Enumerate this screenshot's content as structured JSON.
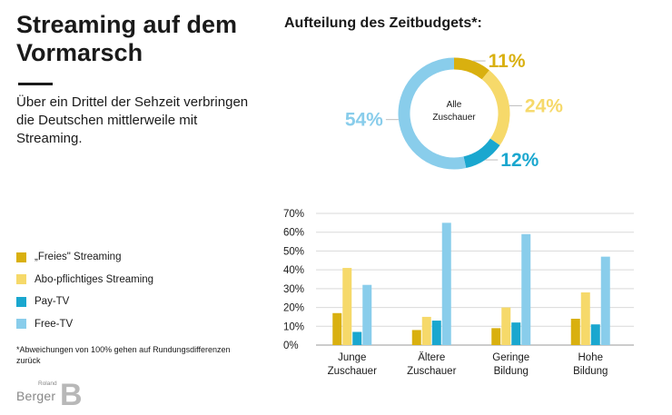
{
  "title": "Streaming auf dem Vormarsch",
  "subtitle": "Über ein Drittel der Sehzeit verbringen die Deutschen mittlerweile mit Streaming.",
  "legend": [
    {
      "label": "„Freies\" Streaming",
      "color": "#d9b00f"
    },
    {
      "label": "Abo-pflichtiges Streaming",
      "color": "#f6d96a"
    },
    {
      "label": "Pay-TV",
      "color": "#1aa7cf"
    },
    {
      "label": "Free-TV",
      "color": "#89cdeb"
    }
  ],
  "footnote": "*Abweichungen von 100% gehen auf Rundungsdifferenzen zurück",
  "logo": {
    "small": "Roland",
    "main": "Berger",
    "mark": "B"
  },
  "chart_data": [
    {
      "type": "pie",
      "title": "Aufteilung des Zeitbudgets*:",
      "center_label": "Alle Zuschauer",
      "slices": [
        {
          "name": "„Freies\" Streaming",
          "value": 11,
          "label": "11%",
          "color": "#d9b00f"
        },
        {
          "name": "Abo-pflichtiges Streaming",
          "value": 24,
          "label": "24%",
          "color": "#f6d96a"
        },
        {
          "name": "Pay-TV",
          "value": 12,
          "label": "12%",
          "color": "#1aa7cf"
        },
        {
          "name": "Free-TV",
          "value": 54,
          "label": "54%",
          "color": "#89cdeb"
        }
      ]
    },
    {
      "type": "bar",
      "categories": [
        "Junge Zuschauer",
        "Ältere Zuschauer",
        "Geringe Bildung",
        "Hohe Bildung"
      ],
      "category_lines": [
        [
          "Junge",
          "Zuschauer"
        ],
        [
          "Ältere",
          "Zuschauer"
        ],
        [
          "Geringe",
          "Bildung"
        ],
        [
          "Hohe",
          "Bildung"
        ]
      ],
      "series": [
        {
          "name": "„Freies\" Streaming",
          "color": "#d9b00f",
          "values": [
            17,
            8,
            9,
            14
          ]
        },
        {
          "name": "Abo-pflichtiges Streaming",
          "color": "#f6d96a",
          "values": [
            41,
            15,
            20,
            28
          ]
        },
        {
          "name": "Pay-TV",
          "color": "#1aa7cf",
          "values": [
            7,
            13,
            12,
            11
          ]
        },
        {
          "name": "Free-TV",
          "color": "#89cdeb",
          "values": [
            32,
            65,
            59,
            47
          ]
        }
      ],
      "yticks": [
        "0%",
        "10%",
        "20%",
        "30%",
        "40%",
        "50%",
        "60%",
        "70%"
      ],
      "ylim": [
        0,
        70
      ],
      "grid": true
    }
  ]
}
